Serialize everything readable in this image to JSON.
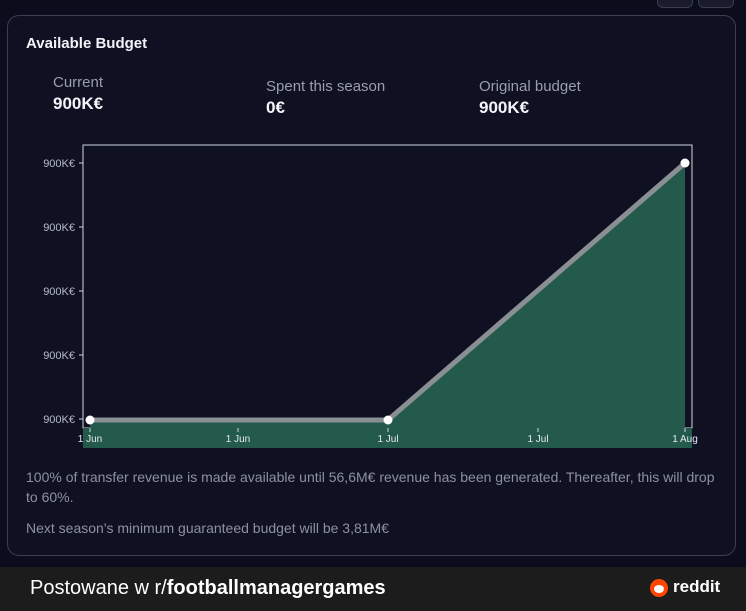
{
  "card": {
    "title": "Available Budget",
    "stats": [
      {
        "label": "Current",
        "value": "900K€"
      },
      {
        "label": "Spent this season",
        "value": "0€"
      },
      {
        "label": "Original budget",
        "value": "900K€"
      }
    ],
    "notes": [
      "100% of transfer revenue is made available until 56,6M€ revenue has been generated. Thereafter, this will drop to 60%.",
      "Next season's minimum guaranteed budget will be 3,81M€"
    ]
  },
  "chart_data": {
    "type": "area",
    "x_ticks": [
      "1 Jun",
      "1 Jun",
      "1 Jul",
      "1 Jul",
      "1 Aug"
    ],
    "y_ticks": [
      "900K€",
      "900K€",
      "900K€",
      "900K€",
      "900K€"
    ],
    "points": [
      {
        "x": "1 Jun",
        "y": 0
      },
      {
        "x": "1 Jul",
        "y": 0
      },
      {
        "x": "1 Aug",
        "y": 1
      }
    ],
    "fill_color": "#245a4c",
    "line_color": "#8a8f94",
    "grid": false
  },
  "footer": {
    "prefix": "Postowane w r/",
    "subreddit": "footballmanagergames",
    "brand": "reddit"
  }
}
